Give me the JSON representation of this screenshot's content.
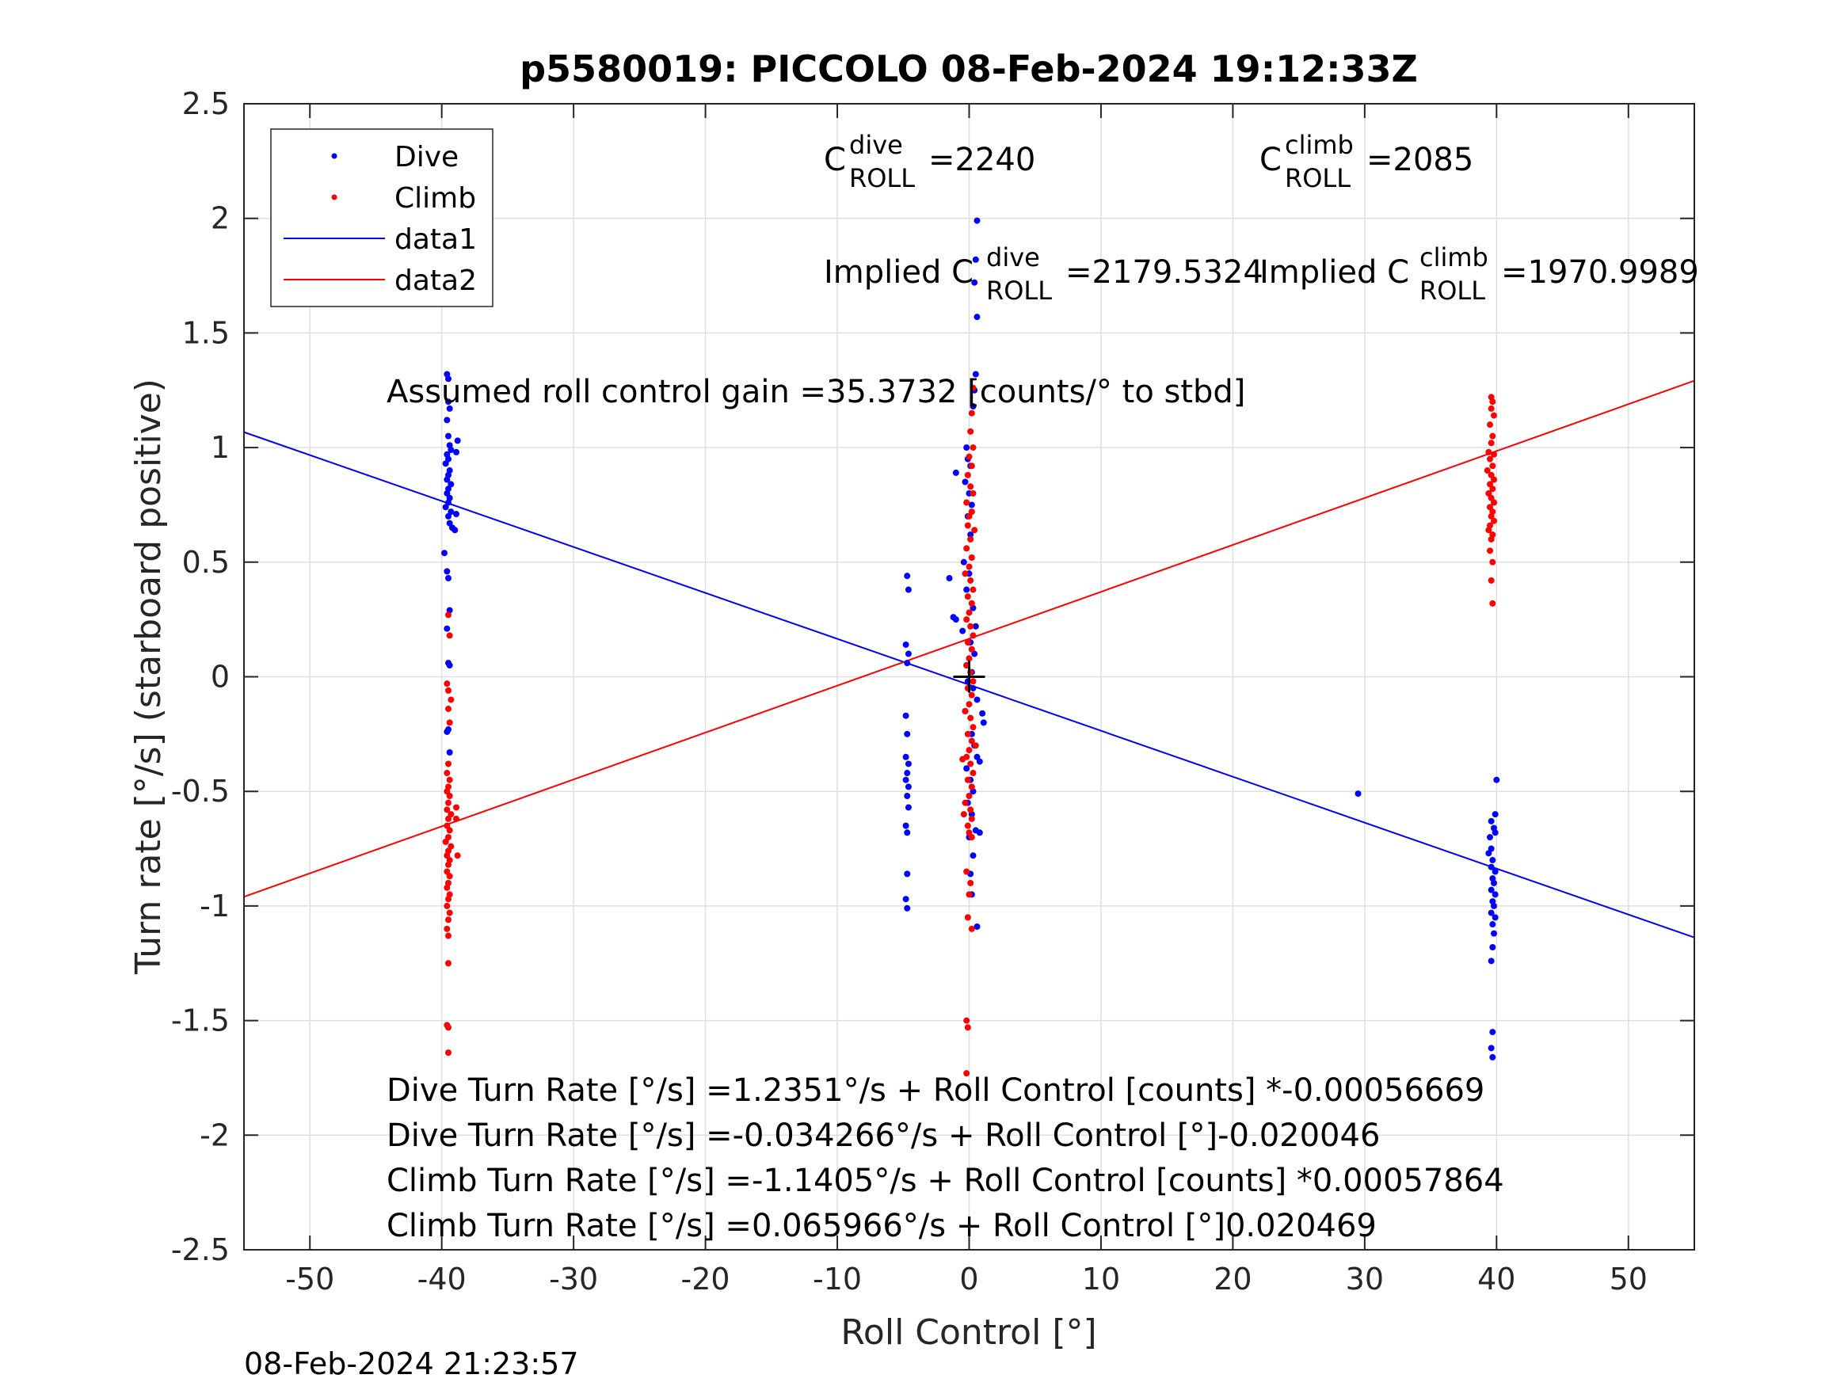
{
  "chart_data": {
    "type": "scatter",
    "title": "p5580019: PICCOLO 08-Feb-2024 19:12:33Z",
    "xlabel": "Roll Control [°]",
    "ylabel": "Turn rate [°/s] (starboard positive)",
    "xlim": [
      -55,
      55
    ],
    "ylim": [
      -2.5,
      2.5
    ],
    "xticks": [
      -50,
      -40,
      -30,
      -20,
      -10,
      0,
      10,
      20,
      30,
      40,
      50
    ],
    "xtick_labels": [
      "-50",
      "-40",
      "-30",
      "-20",
      "-10",
      "0",
      "10",
      "20",
      "30",
      "40",
      "50"
    ],
    "yticks": [
      -2.5,
      -2,
      -1.5,
      -1,
      -0.5,
      0,
      0.5,
      1,
      1.5,
      2,
      2.5
    ],
    "ytick_labels": [
      "-2.5",
      "-2",
      "-1.5",
      "-1",
      "-0.5",
      "0",
      "0.5",
      "1",
      "1.5",
      "2",
      "2.5"
    ],
    "grid": true,
    "legend_position": "top-left",
    "legend": [
      "Dive",
      "Climb",
      "data1",
      "data2"
    ],
    "colors": {
      "dive": "#0000ff",
      "climb": "#ff0000",
      "marker": "#000000"
    },
    "series": [
      {
        "name": "Dive",
        "kind": "points",
        "points": [
          [
            -39.6,
            1.32
          ],
          [
            -39.5,
            1.3
          ],
          [
            -39.5,
            1.2
          ],
          [
            -39.4,
            1.17
          ],
          [
            -39.6,
            1.12
          ],
          [
            -39.5,
            1.05
          ],
          [
            -39.4,
            1.01
          ],
          [
            -39.3,
            0.99
          ],
          [
            -39.6,
            0.97
          ],
          [
            -39.5,
            0.95
          ],
          [
            -39.7,
            0.93
          ],
          [
            -39.4,
            0.9
          ],
          [
            -39.5,
            0.88
          ],
          [
            -39.6,
            0.86
          ],
          [
            -39.3,
            0.84
          ],
          [
            -39.5,
            0.82
          ],
          [
            -39.6,
            0.8
          ],
          [
            -39.4,
            0.78
          ],
          [
            -39.5,
            0.76
          ],
          [
            -39.7,
            0.74
          ],
          [
            -39.3,
            0.72
          ],
          [
            -39.5,
            0.7
          ],
          [
            -39.4,
            0.67
          ],
          [
            -39.2,
            0.65
          ],
          [
            -38.9,
            0.71
          ],
          [
            -39.0,
            0.64
          ],
          [
            -38.8,
            1.03
          ],
          [
            -38.9,
            0.98
          ],
          [
            -39.8,
            0.54
          ],
          [
            -39.6,
            0.46
          ],
          [
            -39.5,
            0.43
          ],
          [
            -39.4,
            0.29
          ],
          [
            -39.6,
            0.21
          ],
          [
            -39.5,
            0.06
          ],
          [
            -39.4,
            0.05
          ],
          [
            -39.5,
            -0.23
          ],
          [
            -39.6,
            -0.24
          ],
          [
            -39.4,
            -0.33
          ],
          [
            -4.7,
            0.44
          ],
          [
            -4.6,
            0.38
          ],
          [
            -4.8,
            0.14
          ],
          [
            -4.6,
            0.1
          ],
          [
            -4.7,
            0.06
          ],
          [
            -4.8,
            -0.17
          ],
          [
            -4.7,
            -0.25
          ],
          [
            -4.8,
            -0.35
          ],
          [
            -4.6,
            -0.38
          ],
          [
            -4.7,
            -0.42
          ],
          [
            -4.8,
            -0.45
          ],
          [
            -4.6,
            -0.48
          ],
          [
            -4.7,
            -0.52
          ],
          [
            -4.6,
            -0.57
          ],
          [
            -4.8,
            -0.65
          ],
          [
            -4.7,
            -0.68
          ],
          [
            -4.7,
            -0.86
          ],
          [
            -4.8,
            -0.97
          ],
          [
            -4.7,
            -1.01
          ],
          [
            0.6,
            1.99
          ],
          [
            0.5,
            1.82
          ],
          [
            0.4,
            1.72
          ],
          [
            0.6,
            1.57
          ],
          [
            0.5,
            1.32
          ],
          [
            0.4,
            1.25
          ],
          [
            0.3,
            1.18
          ],
          [
            -0.2,
            1.0
          ],
          [
            -0.1,
            0.95
          ],
          [
            0.1,
            0.92
          ],
          [
            -1.0,
            0.89
          ],
          [
            -0.3,
            0.85
          ],
          [
            0.0,
            0.8
          ],
          [
            0.2,
            0.75
          ],
          [
            -0.1,
            0.7
          ],
          [
            0.1,
            0.62
          ],
          [
            -0.4,
            0.5
          ],
          [
            0.0,
            0.45
          ],
          [
            -1.5,
            0.43
          ],
          [
            -0.2,
            0.38
          ],
          [
            0.3,
            0.3
          ],
          [
            -1.2,
            0.26
          ],
          [
            -1.0,
            0.25
          ],
          [
            0.5,
            0.22
          ],
          [
            -0.5,
            0.2
          ],
          [
            0.1,
            0.15
          ],
          [
            0.4,
            0.1
          ],
          [
            -0.2,
            0.05
          ],
          [
            0.2,
            0.02
          ],
          [
            -0.1,
            -0.02
          ],
          [
            0.3,
            -0.05
          ],
          [
            0.6,
            -0.1
          ],
          [
            -0.3,
            -0.15
          ],
          [
            1.0,
            -0.16
          ],
          [
            1.1,
            -0.2
          ],
          [
            0.2,
            -0.25
          ],
          [
            0.4,
            -0.3
          ],
          [
            0.6,
            -0.35
          ],
          [
            0.8,
            -0.37
          ],
          [
            -0.2,
            -0.4
          ],
          [
            0.1,
            -0.45
          ],
          [
            0.3,
            -0.5
          ],
          [
            -0.1,
            -0.55
          ],
          [
            0.2,
            -0.6
          ],
          [
            0.5,
            -0.67
          ],
          [
            0.8,
            -0.68
          ],
          [
            0.0,
            -0.7
          ],
          [
            0.3,
            -0.78
          ],
          [
            0.1,
            -0.86
          ],
          [
            0.2,
            -0.95
          ],
          [
            0.6,
            -1.09
          ],
          [
            29.5,
            -0.51
          ],
          [
            40.0,
            -0.45
          ],
          [
            39.9,
            -0.6
          ],
          [
            39.6,
            -0.63
          ],
          [
            39.8,
            -0.66
          ],
          [
            39.9,
            -0.68
          ],
          [
            39.5,
            -0.7
          ],
          [
            39.6,
            -0.75
          ],
          [
            39.4,
            -0.77
          ],
          [
            39.7,
            -0.8
          ],
          [
            39.6,
            -0.83
          ],
          [
            39.9,
            -0.85
          ],
          [
            39.7,
            -0.88
          ],
          [
            39.8,
            -0.9
          ],
          [
            39.6,
            -0.93
          ],
          [
            39.9,
            -0.95
          ],
          [
            39.7,
            -0.98
          ],
          [
            39.8,
            -1.0
          ],
          [
            39.6,
            -1.03
          ],
          [
            39.9,
            -1.05
          ],
          [
            39.7,
            -1.08
          ],
          [
            39.8,
            -1.12
          ],
          [
            39.7,
            -1.18
          ],
          [
            39.6,
            -1.24
          ],
          [
            39.7,
            -1.55
          ],
          [
            39.6,
            -1.62
          ],
          [
            39.7,
            -1.66
          ]
        ]
      },
      {
        "name": "Climb",
        "kind": "points",
        "points": [
          [
            -39.5,
            0.27
          ],
          [
            -39.4,
            0.18
          ],
          [
            -39.6,
            -0.03
          ],
          [
            -39.5,
            -0.06
          ],
          [
            -39.3,
            -0.1
          ],
          [
            -39.5,
            -0.14
          ],
          [
            -39.4,
            -0.2
          ],
          [
            -39.5,
            -0.38
          ],
          [
            -39.6,
            -0.42
          ],
          [
            -39.4,
            -0.45
          ],
          [
            -39.5,
            -0.48
          ],
          [
            -39.6,
            -0.5
          ],
          [
            -39.4,
            -0.52
          ],
          [
            -39.5,
            -0.55
          ],
          [
            -39.6,
            -0.58
          ],
          [
            -39.3,
            -0.6
          ],
          [
            -39.5,
            -0.62
          ],
          [
            -39.6,
            -0.65
          ],
          [
            -39.4,
            -0.67
          ],
          [
            -39.5,
            -0.7
          ],
          [
            -39.7,
            -0.72
          ],
          [
            -39.3,
            -0.74
          ],
          [
            -39.5,
            -0.76
          ],
          [
            -39.6,
            -0.78
          ],
          [
            -39.4,
            -0.8
          ],
          [
            -39.5,
            -0.82
          ],
          [
            -39.6,
            -0.85
          ],
          [
            -39.4,
            -0.87
          ],
          [
            -39.5,
            -0.9
          ],
          [
            -39.6,
            -0.92
          ],
          [
            -39.4,
            -0.95
          ],
          [
            -39.5,
            -0.97
          ],
          [
            -39.6,
            -1.0
          ],
          [
            -39.4,
            -1.03
          ],
          [
            -39.5,
            -1.06
          ],
          [
            -39.6,
            -1.1
          ],
          [
            -39.5,
            -1.13
          ],
          [
            -38.9,
            -0.57
          ],
          [
            -38.8,
            -0.78
          ],
          [
            -38.9,
            -0.62
          ],
          [
            -39.5,
            -1.25
          ],
          [
            -39.6,
            -1.52
          ],
          [
            -39.5,
            -1.53
          ],
          [
            -39.5,
            -1.64
          ],
          [
            0.3,
            1.26
          ],
          [
            0.2,
            1.15
          ],
          [
            0.1,
            1.07
          ],
          [
            0.3,
            1.0
          ],
          [
            0.0,
            0.96
          ],
          [
            0.2,
            0.92
          ],
          [
            -0.1,
            0.88
          ],
          [
            0.1,
            0.83
          ],
          [
            0.3,
            0.8
          ],
          [
            -0.2,
            0.76
          ],
          [
            0.2,
            0.72
          ],
          [
            0.0,
            0.7
          ],
          [
            -0.1,
            0.66
          ],
          [
            0.4,
            0.64
          ],
          [
            0.1,
            0.6
          ],
          [
            -0.2,
            0.56
          ],
          [
            0.2,
            0.52
          ],
          [
            0.0,
            0.48
          ],
          [
            -0.3,
            0.45
          ],
          [
            0.1,
            0.42
          ],
          [
            0.3,
            0.38
          ],
          [
            -0.1,
            0.35
          ],
          [
            0.2,
            0.32
          ],
          [
            0.0,
            0.28
          ],
          [
            -0.2,
            0.25
          ],
          [
            0.1,
            0.22
          ],
          [
            0.3,
            0.18
          ],
          [
            -0.1,
            0.15
          ],
          [
            0.2,
            0.12
          ],
          [
            0.0,
            0.08
          ],
          [
            -0.2,
            0.05
          ],
          [
            0.1,
            0.02
          ],
          [
            0.3,
            -0.02
          ],
          [
            -0.1,
            -0.05
          ],
          [
            0.2,
            -0.08
          ],
          [
            0.0,
            -0.12
          ],
          [
            -0.3,
            -0.15
          ],
          [
            0.1,
            -0.18
          ],
          [
            0.3,
            -0.22
          ],
          [
            -0.1,
            -0.25
          ],
          [
            0.2,
            -0.28
          ],
          [
            0.0,
            -0.32
          ],
          [
            -0.2,
            -0.35
          ],
          [
            0.1,
            -0.38
          ],
          [
            0.3,
            -0.42
          ],
          [
            -0.1,
            -0.45
          ],
          [
            0.2,
            -0.48
          ],
          [
            0.0,
            -0.52
          ],
          [
            -0.3,
            -0.55
          ],
          [
            0.1,
            -0.58
          ],
          [
            0.2,
            -0.62
          ],
          [
            -0.1,
            -0.65
          ],
          [
            0.0,
            -0.68
          ],
          [
            0.2,
            -0.7
          ],
          [
            -0.5,
            -0.36
          ],
          [
            0.5,
            -0.3
          ],
          [
            -0.4,
            -0.6
          ],
          [
            -0.2,
            -0.85
          ],
          [
            0.1,
            -0.9
          ],
          [
            0.0,
            -0.95
          ],
          [
            -0.1,
            -1.05
          ],
          [
            0.2,
            -1.1
          ],
          [
            -0.2,
            -1.5
          ],
          [
            -0.1,
            -1.53
          ],
          [
            -0.2,
            -1.73
          ],
          [
            39.6,
            1.22
          ],
          [
            39.7,
            1.2
          ],
          [
            39.6,
            1.17
          ],
          [
            39.8,
            1.14
          ],
          [
            39.5,
            1.1
          ],
          [
            39.7,
            1.05
          ],
          [
            39.6,
            1.02
          ],
          [
            39.4,
            0.98
          ],
          [
            39.8,
            0.97
          ],
          [
            39.5,
            0.95
          ],
          [
            39.7,
            0.92
          ],
          [
            39.3,
            0.9
          ],
          [
            39.6,
            0.88
          ],
          [
            39.8,
            0.86
          ],
          [
            39.5,
            0.84
          ],
          [
            39.7,
            0.82
          ],
          [
            39.4,
            0.8
          ],
          [
            39.6,
            0.78
          ],
          [
            39.8,
            0.76
          ],
          [
            39.5,
            0.74
          ],
          [
            39.7,
            0.72
          ],
          [
            39.6,
            0.7
          ],
          [
            39.8,
            0.68
          ],
          [
            39.5,
            0.66
          ],
          [
            39.4,
            0.64
          ],
          [
            39.7,
            0.62
          ],
          [
            39.6,
            0.6
          ],
          [
            39.5,
            0.55
          ],
          [
            39.7,
            0.5
          ],
          [
            39.6,
            0.42
          ],
          [
            39.7,
            0.32
          ]
        ]
      },
      {
        "name": "data1",
        "kind": "line",
        "x": [
          -55,
          55
        ],
        "y": [
          1.0673,
          -1.1376
        ]
      },
      {
        "name": "data2",
        "kind": "line",
        "x": [
          -55,
          55
        ],
        "y": [
          -0.9598,
          1.2917
        ]
      },
      {
        "name": "origin",
        "kind": "marker",
        "points": [
          [
            0,
            0
          ]
        ]
      }
    ],
    "annotations": [
      {
        "id": "c-dive",
        "base": "C",
        "sup": "dive",
        "sub": "ROLL",
        "value": "=2240"
      },
      {
        "id": "c-climb",
        "base": "C",
        "sup": "climb",
        "sub": "ROLL",
        "value": "=2085"
      },
      {
        "id": "implied-dive",
        "base": "Implied C",
        "sup": "dive",
        "sub": "ROLL",
        "value": "=2179.5324"
      },
      {
        "id": "implied-climb",
        "base": "Implied C",
        "sup": "climb",
        "sub": "ROLL",
        "value": "=1970.9989"
      }
    ],
    "gain_text": "Assumed roll control gain =35.3732 [counts/° to stbd]",
    "equations": [
      "Dive Turn Rate [°/s] =1.2351°/s + Roll Control [counts] *-0.00056669",
      "Dive Turn Rate [°/s] =-0.034266°/s + Roll Control [°]-0.020046",
      "Climb Turn Rate [°/s] =-1.1405°/s + Roll Control [counts] *0.00057864",
      "Climb Turn Rate [°/s] =0.065966°/s + Roll Control [°]0.020469"
    ]
  },
  "footer_timestamp": "08-Feb-2024 21:23:57"
}
